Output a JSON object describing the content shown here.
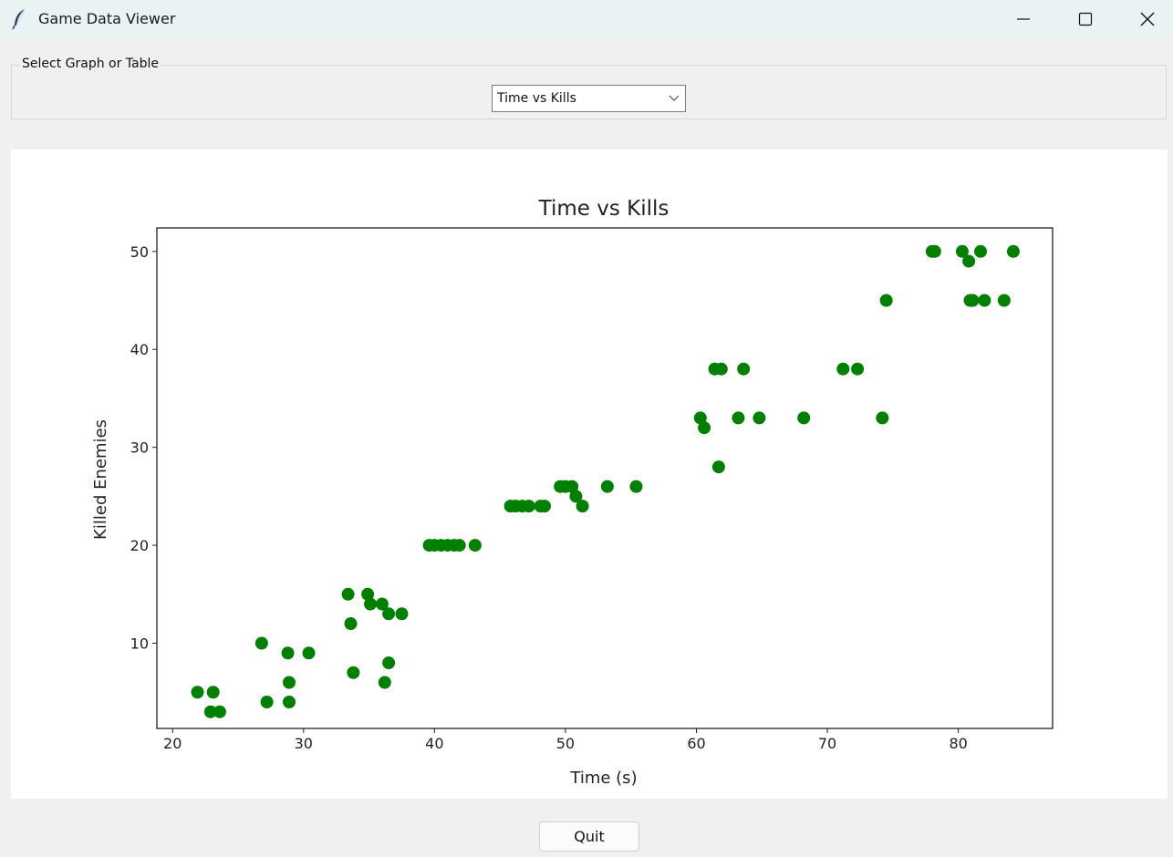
{
  "window": {
    "title": "Game Data Viewer",
    "icons": [
      "feather-icon",
      "minimize-icon",
      "maximize-icon",
      "close-icon"
    ]
  },
  "selector": {
    "legend": "Select Graph or Table",
    "selected": "Time vs Kills"
  },
  "quit_label": "Quit",
  "chart_data": {
    "type": "scatter",
    "title": "Time vs Kills",
    "xlabel": "Time (s)",
    "ylabel": "Killed Enemies",
    "xlim": [
      18.8,
      87.2
    ],
    "ylim": [
      1.3,
      52.4
    ],
    "xticks": [
      20,
      30,
      40,
      50,
      60,
      70,
      80
    ],
    "yticks": [
      10,
      20,
      30,
      40,
      50
    ],
    "grid": false,
    "marker_color": "#008000",
    "points": [
      [
        21.9,
        5
      ],
      [
        23.1,
        5
      ],
      [
        22.9,
        3
      ],
      [
        23.6,
        3
      ],
      [
        26.8,
        10
      ],
      [
        27.2,
        4
      ],
      [
        28.8,
        9
      ],
      [
        28.9,
        6
      ],
      [
        28.9,
        4
      ],
      [
        30.4,
        9
      ],
      [
        33.4,
        15
      ],
      [
        33.6,
        12
      ],
      [
        33.8,
        7
      ],
      [
        34.9,
        15
      ],
      [
        35.1,
        14
      ],
      [
        36.0,
        14
      ],
      [
        36.5,
        13
      ],
      [
        37.5,
        13
      ],
      [
        36.2,
        6
      ],
      [
        36.5,
        8
      ],
      [
        39.6,
        20
      ],
      [
        40.0,
        20
      ],
      [
        40.5,
        20
      ],
      [
        41.0,
        20
      ],
      [
        41.5,
        20
      ],
      [
        41.9,
        20
      ],
      [
        43.1,
        20
      ],
      [
        45.8,
        24
      ],
      [
        46.2,
        24
      ],
      [
        46.7,
        24
      ],
      [
        47.2,
        24
      ],
      [
        48.1,
        24
      ],
      [
        48.4,
        24
      ],
      [
        49.6,
        26
      ],
      [
        50.0,
        26
      ],
      [
        50.5,
        26
      ],
      [
        50.8,
        25
      ],
      [
        51.3,
        24
      ],
      [
        53.2,
        26
      ],
      [
        55.4,
        26
      ],
      [
        60.3,
        33
      ],
      [
        60.6,
        32
      ],
      [
        61.4,
        38
      ],
      [
        61.9,
        38
      ],
      [
        61.7,
        28
      ],
      [
        63.2,
        33
      ],
      [
        63.6,
        38
      ],
      [
        64.8,
        33
      ],
      [
        68.2,
        33
      ],
      [
        71.2,
        38
      ],
      [
        72.3,
        38
      ],
      [
        74.2,
        33
      ],
      [
        74.5,
        45
      ],
      [
        78.0,
        50
      ],
      [
        78.2,
        50
      ],
      [
        80.3,
        50
      ],
      [
        80.8,
        49
      ],
      [
        80.9,
        45
      ],
      [
        81.1,
        45
      ],
      [
        81.7,
        50
      ],
      [
        82.0,
        45
      ],
      [
        83.5,
        45
      ],
      [
        84.2,
        50
      ]
    ]
  }
}
